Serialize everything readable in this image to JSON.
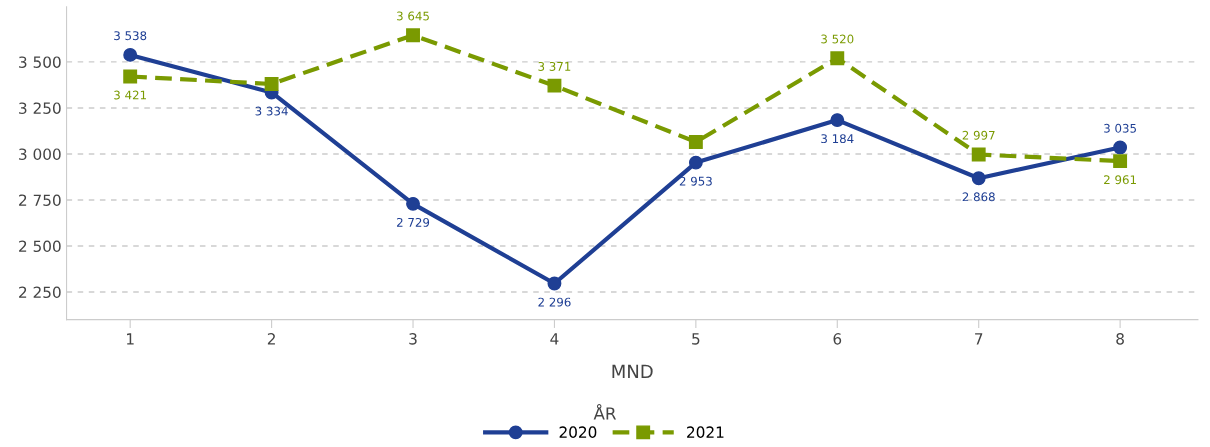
{
  "chart_data": {
    "type": "line",
    "xlabel": "MND",
    "legend_title": "ÅR",
    "legend": "bottom",
    "grid": "y",
    "categories": [
      "1",
      "2",
      "3",
      "4",
      "5",
      "6",
      "7",
      "8"
    ],
    "ylim": [
      2100,
      3800
    ],
    "yticks": [
      {
        "value": 2250,
        "label": "2 250"
      },
      {
        "value": 2500,
        "label": "2 500"
      },
      {
        "value": 2750,
        "label": "2 750"
      },
      {
        "value": 3000,
        "label": "3 000"
      },
      {
        "value": 3250,
        "label": "3 250"
      },
      {
        "value": 3500,
        "label": "3 500"
      }
    ],
    "series": [
      {
        "name": "2020",
        "color": "#1f3f94",
        "marker": "circle",
        "line_style": "solid",
        "values": [
          3538,
          3334,
          2729,
          2296,
          2953,
          3184,
          2868,
          3035
        ],
        "value_labels": [
          "3 538",
          "3 334",
          "2 729",
          "2 296",
          "2 953",
          "3 184",
          "2 868",
          "3 035"
        ]
      },
      {
        "name": "2021",
        "color": "#7a9a01",
        "marker": "square",
        "line_style": "dashed",
        "values": [
          3421,
          3380,
          3645,
          3371,
          3065,
          3520,
          2997,
          2961
        ],
        "value_labels": [
          "3 421",
          null,
          "3 645",
          "3 371",
          null,
          "3 520",
          "2 997",
          "2 961"
        ]
      }
    ]
  }
}
